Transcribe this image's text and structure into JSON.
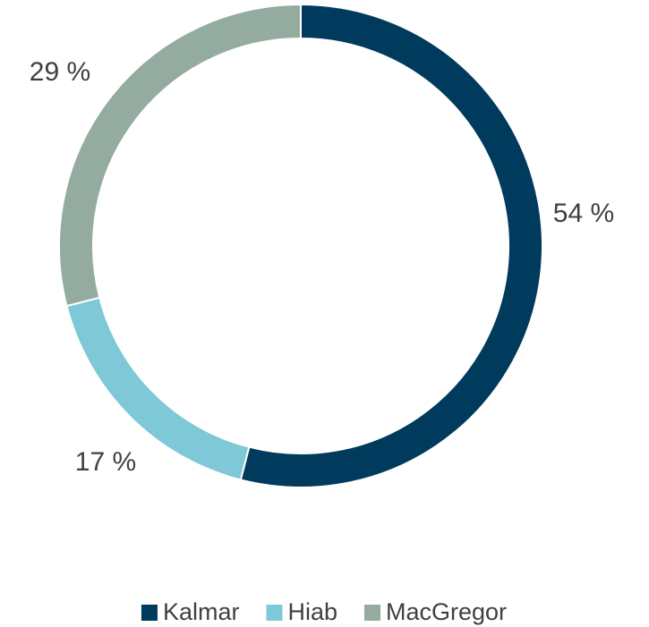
{
  "chart_data": {
    "type": "donut",
    "categories": [
      "Kalmar",
      "Hiab",
      "MacGregor"
    ],
    "values": [
      54,
      17,
      29
    ],
    "value_labels": [
      "54 %",
      "17 %",
      "29 %"
    ],
    "colors": [
      "#003a5c",
      "#7ec8d8",
      "#94ab9f"
    ],
    "legend": "bottom"
  }
}
